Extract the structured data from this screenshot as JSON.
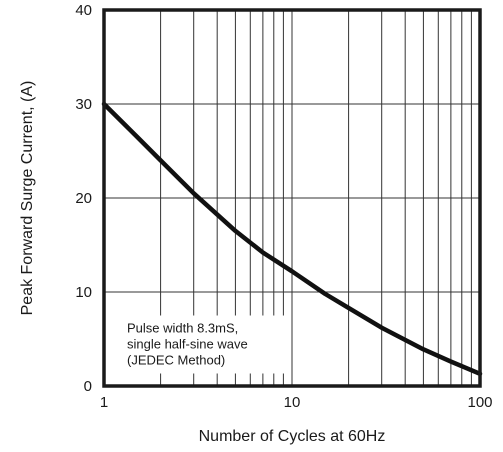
{
  "chart_data": {
    "type": "line",
    "title": "",
    "xlabel": "Number of Cycles at 60Hz",
    "ylabel": "Peak Forward Surge Current, (A)",
    "xscale": "log",
    "xlim": [
      1,
      100
    ],
    "ylim": [
      0,
      40
    ],
    "grid": true,
    "x_ticks": [
      {
        "value": 1,
        "label": "1"
      },
      {
        "value": 10,
        "label": "10"
      },
      {
        "value": 100,
        "label": "100"
      }
    ],
    "y_ticks": [
      {
        "value": 0,
        "label": "0"
      },
      {
        "value": 10,
        "label": "10"
      },
      {
        "value": 20,
        "label": "20"
      },
      {
        "value": 30,
        "label": "30"
      },
      {
        "value": 40,
        "label": "40"
      }
    ],
    "series": [
      {
        "x": [
          1,
          1.5,
          2,
          3,
          5,
          7,
          10,
          15,
          20,
          30,
          50,
          70,
          100
        ],
        "y": [
          30,
          26.5,
          24,
          20.5,
          16.5,
          14.2,
          12.2,
          9.8,
          8.3,
          6.2,
          3.9,
          2.6,
          1.3
        ]
      }
    ],
    "annotation": [
      "Pulse width 8.3mS,",
      "single half-sine wave",
      "(JEDEC Method)"
    ]
  }
}
